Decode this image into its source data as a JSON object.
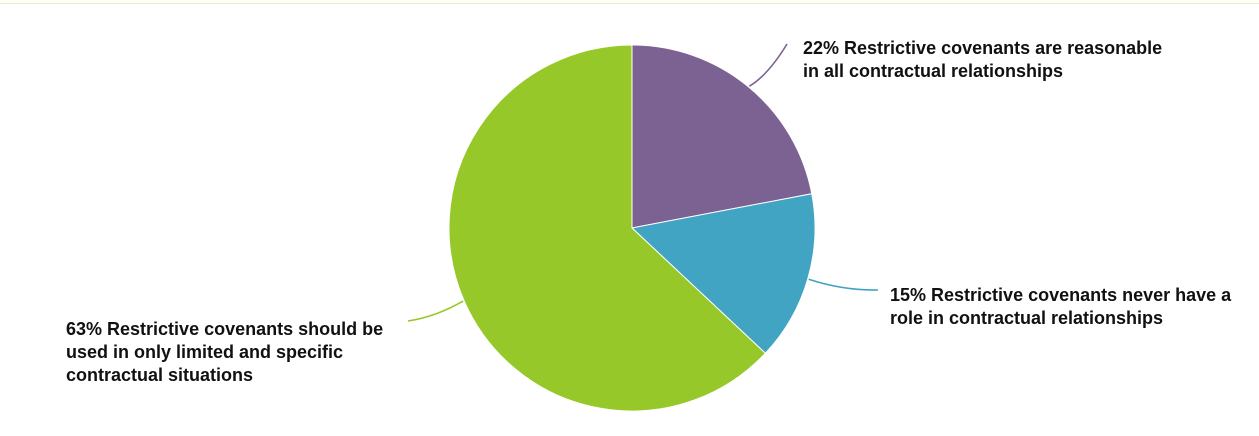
{
  "chart_data": {
    "type": "pie",
    "slices": [
      {
        "label": "22% Restrictive covenants are reasonable in all contractual relationships",
        "value": 22,
        "color": "#7c6292",
        "leader_color": "#7c6292"
      },
      {
        "label": "15% Restrictive covenants never have a role in contractual relationships",
        "value": 15,
        "color": "#41a4c3",
        "leader_color": "#41a4c3"
      },
      {
        "label": "63% Restrictive covenants should be used in only limited and specific contractual situations",
        "value": 63,
        "color": "#96c829",
        "leader_color": "#96c829"
      }
    ],
    "start_angle": "12 o'clock",
    "direction": "clockwise"
  }
}
